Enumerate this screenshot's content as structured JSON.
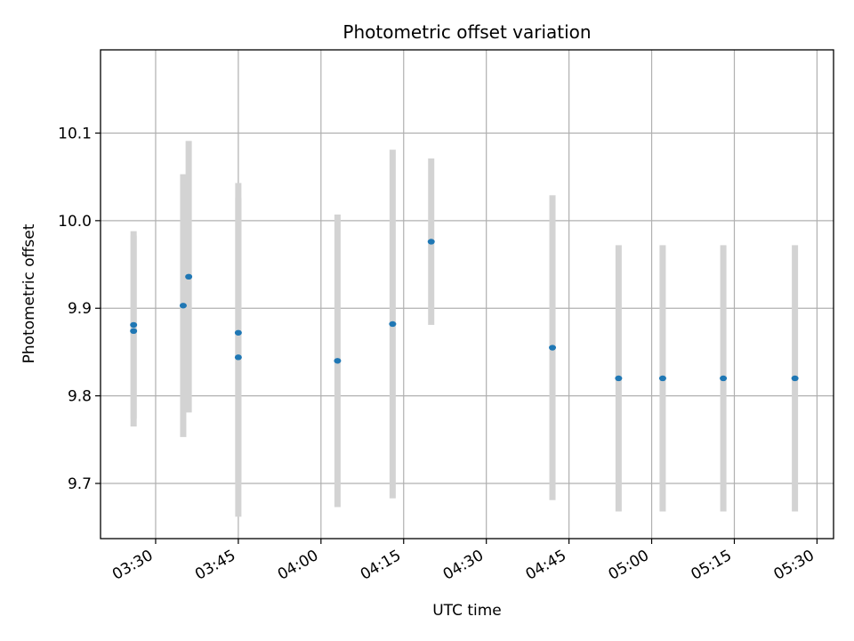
{
  "chart_data": {
    "type": "scatter",
    "title": "Photometric offset variation",
    "xlabel": "UTC time",
    "ylabel": "Photometric offset",
    "x_scale": "time",
    "xlim": [
      "03:20",
      "05:33"
    ],
    "ylim": [
      9.637,
      10.195
    ],
    "x_ticks": [
      "03:30",
      "03:45",
      "04:00",
      "04:15",
      "04:30",
      "04:45",
      "05:00",
      "05:15",
      "05:30"
    ],
    "y_ticks": [
      9.7,
      9.8,
      9.9,
      10.0,
      10.1
    ],
    "grid": true,
    "marker_color": "#1f77b4",
    "errorbar_color": "#d3d3d3",
    "points": [
      {
        "time": "03:26",
        "value": 9.874,
        "err": 0.109
      },
      {
        "time": "03:26",
        "value": 9.881,
        "err": 0.107
      },
      {
        "time": "03:35",
        "value": 9.903,
        "err": 0.15
      },
      {
        "time": "03:36",
        "value": 9.936,
        "err": 0.155
      },
      {
        "time": "03:45",
        "value": 9.872,
        "err": 0.171
      },
      {
        "time": "03:45",
        "value": 9.844,
        "err": 0.182
      },
      {
        "time": "04:03",
        "value": 9.84,
        "err": 0.167
      },
      {
        "time": "04:13",
        "value": 9.882,
        "err": 0.199
      },
      {
        "time": "04:20",
        "value": 9.976,
        "err": 0.095
      },
      {
        "time": "04:42",
        "value": 9.855,
        "err": 0.174
      },
      {
        "time": "04:54",
        "value": 9.82,
        "err": 0.152
      },
      {
        "time": "05:02",
        "value": 9.82,
        "err": 0.152
      },
      {
        "time": "05:13",
        "value": 9.82,
        "err": 0.152
      },
      {
        "time": "05:26",
        "value": 9.82,
        "err": 0.152
      }
    ]
  }
}
